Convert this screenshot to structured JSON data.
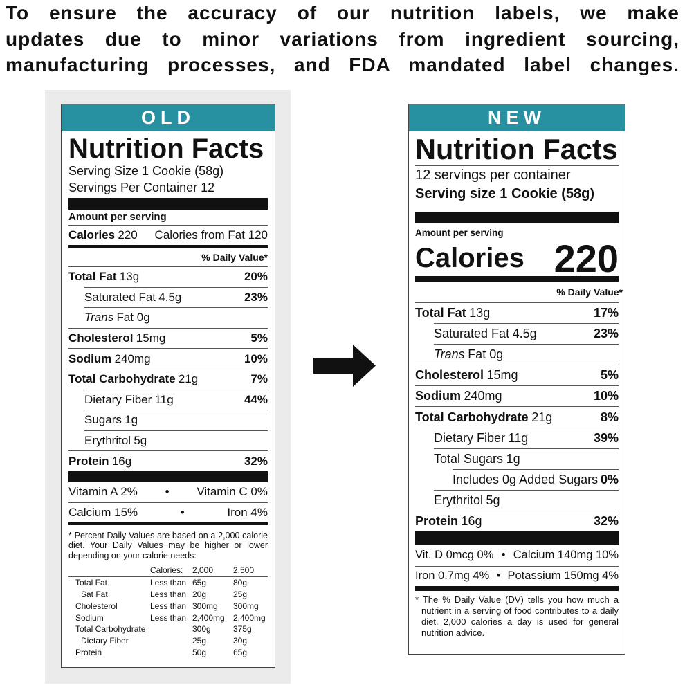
{
  "header": {
    "lines": [
      "To ensure the accuracy of our nutrition labels, we make",
      "updates due to minor variations from ingredient sourcing,",
      "manufacturing processes, and FDA mandated label changes."
    ]
  },
  "old": {
    "badge": "OLD",
    "title": "Nutrition Facts",
    "serving_size": "Serving Size 1 Cookie (58g)",
    "servings": "Servings Per Container 12",
    "amount_per_serving": "Amount per serving",
    "calories": {
      "label": "Calories",
      "value": "220",
      "from_fat": "Calories from Fat 120"
    },
    "dv_header": "% Daily Value*",
    "nutrients": [
      {
        "name": "Total Fat",
        "amount": "13g",
        "dv": "20%",
        "level": 0
      },
      {
        "name": "Saturated Fat",
        "amount": "4.5g",
        "dv": "23%",
        "level": 1
      },
      {
        "name": "Trans",
        "amount": "Fat 0g",
        "level": 1,
        "italic": true
      },
      {
        "name": "Cholesterol",
        "amount": "15mg",
        "dv": "5%",
        "level": 0
      },
      {
        "name": "Sodium",
        "amount": "240mg",
        "dv": "10%",
        "level": 0
      },
      {
        "name": "Total Carbohydrate",
        "amount": "21g",
        "dv": "7%",
        "level": 0
      },
      {
        "name": "Dietary Fiber",
        "amount": "11g",
        "dv": "44%",
        "level": 1
      },
      {
        "name": "Sugars",
        "amount": "1g",
        "level": 1
      },
      {
        "name": "Erythritol",
        "amount": "5g",
        "level": 1
      },
      {
        "name": "Protein",
        "amount": "16g",
        "dv": "32%",
        "level": 0
      }
    ],
    "vitamins": [
      [
        "Vitamin A 2%",
        "Vitamin C 0%"
      ],
      [
        "Calcium 15%",
        "Iron 4%"
      ]
    ],
    "footnote": "* Percent Daily Values are based on a 2,000 calorie diet. Your Daily Values may be higher or lower depending on your calorie needs:",
    "table": {
      "header": [
        "Calories:",
        "2,000",
        "2,500"
      ],
      "rows": [
        {
          "label": "Total Fat",
          "limit": "Less than",
          "values": [
            "65g",
            "80g"
          ]
        },
        {
          "label": "Sat Fat",
          "limit": "Less than",
          "values": [
            "20g",
            "25g"
          ],
          "indent": true
        },
        {
          "label": "Cholesterol",
          "limit": "Less than",
          "values": [
            "300mg",
            "300mg"
          ]
        },
        {
          "label": "Sodium",
          "limit": "Less than",
          "values": [
            "2,400mg",
            "2,400mg"
          ]
        },
        {
          "label": "Total Carbohydrate",
          "values": [
            "300g",
            "375g"
          ]
        },
        {
          "label": "Dietary Fiber",
          "values": [
            "25g",
            "30g"
          ],
          "indent": true
        },
        {
          "label": "Protein",
          "values": [
            "50g",
            "65g"
          ]
        }
      ]
    }
  },
  "new": {
    "badge": "NEW",
    "title": "Nutrition Facts",
    "servings": "12 servings per container",
    "serving_size": "Serving size 1 Cookie (58g)",
    "amount_per_serving": "Amount per serving",
    "calories": {
      "label": "Calories",
      "value": "220"
    },
    "dv_header": "% Daily Value*",
    "nutrients": [
      {
        "name": "Total Fat",
        "amount": "13g",
        "dv": "17%",
        "level": 0
      },
      {
        "name": "Saturated Fat",
        "amount": "4.5g",
        "dv": "23%",
        "level": 1
      },
      {
        "name": "Trans",
        "amount": "Fat 0g",
        "level": 1,
        "italic": true
      },
      {
        "name": "Cholesterol",
        "amount": "15mg",
        "dv": "5%",
        "level": 0
      },
      {
        "name": "Sodium",
        "amount": "240mg",
        "dv": "10%",
        "level": 0
      },
      {
        "name": "Total Carbohydrate",
        "amount": "21g",
        "dv": "8%",
        "level": 0
      },
      {
        "name": "Dietary Fiber",
        "amount": "11g",
        "dv": "39%",
        "level": 1
      },
      {
        "name": "Total Sugars",
        "amount": "1g",
        "level": 1
      },
      {
        "name": "Includes 0g Added Sugars",
        "dv": "0%",
        "level": 2
      },
      {
        "name": "Erythritol",
        "amount": "5g",
        "level": 1
      },
      {
        "name": "Protein",
        "amount": "16g",
        "dv": "32%",
        "level": 0
      }
    ],
    "vitamins": [
      [
        "Vit. D 0mcg 0%",
        "Calcium 140mg 10%"
      ],
      [
        "Iron 0.7mg 4%",
        "Potassium 150mg 4%"
      ]
    ],
    "footnote": "* The % Daily Value (DV) tells you how much a nutrient in a serving of food contributes to a daily diet. 2,000 calories a day is used for general nutrition advice."
  }
}
